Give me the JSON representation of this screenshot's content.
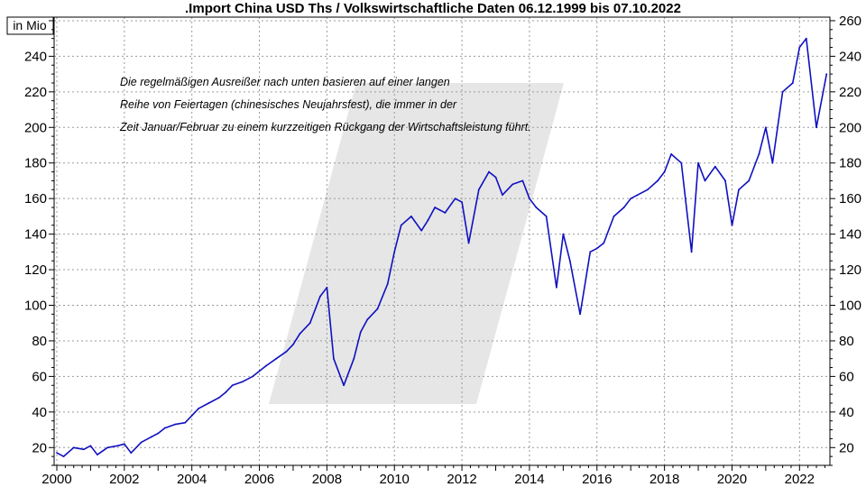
{
  "chart_data": {
    "type": "line",
    "title": ".Import China USD Ths / Volkswirtschaftliche Daten 06.12.1999 bis 07.10.2022",
    "unit_label": "in Mio",
    "annotation": [
      "Die regelmäßigen Ausreißer nach unten basieren auf einer langen",
      "Reihe von Feiertagen (chinesisches Neujahrsfest), die immer in der",
      "Zeit Januar/Februar zu einem kurzzeitigen Rückgang der Wirtschaftsleistung führt."
    ],
    "xlim": [
      1999.92,
      2022.9
    ],
    "ylim": [
      10,
      262
    ],
    "x_ticks": [
      2000,
      2002,
      2004,
      2006,
      2008,
      2010,
      2012,
      2014,
      2016,
      2018,
      2020,
      2022
    ],
    "y_ticks_left": [
      20,
      40,
      60,
      80,
      100,
      120,
      140,
      160,
      180,
      200,
      220,
      240
    ],
    "y_ticks_right": [
      20,
      40,
      60,
      80,
      100,
      120,
      140,
      160,
      180,
      200,
      220,
      240,
      260
    ],
    "grid": true,
    "line_color": "#1010c0",
    "series": [
      {
        "x": [
          2000.0,
          2000.2,
          2000.5,
          2000.8,
          2001.0,
          2001.2,
          2001.5,
          2001.8,
          2002.0,
          2002.2,
          2002.5,
          2002.8,
          2003.0,
          2003.2,
          2003.5,
          2003.8,
          2004.0,
          2004.2,
          2004.5,
          2004.8,
          2005.0,
          2005.2,
          2005.5,
          2005.8,
          2006.0,
          2006.2,
          2006.5,
          2006.8,
          2007.0,
          2007.2,
          2007.5,
          2007.8,
          2008.0,
          2008.2,
          2008.5,
          2008.8,
          2009.0,
          2009.2,
          2009.5,
          2009.8,
          2010.0,
          2010.2,
          2010.5,
          2010.8,
          2011.0,
          2011.2,
          2011.5,
          2011.8,
          2012.0,
          2012.2,
          2012.5,
          2012.8,
          2013.0,
          2013.2,
          2013.5,
          2013.8,
          2014.0,
          2014.2,
          2014.5,
          2014.8,
          2015.0,
          2015.2,
          2015.5,
          2015.8,
          2016.0,
          2016.2,
          2016.5,
          2016.8,
          2017.0,
          2017.2,
          2017.5,
          2017.8,
          2018.0,
          2018.2,
          2018.5,
          2018.8,
          2019.0,
          2019.2,
          2019.5,
          2019.8,
          2020.0,
          2020.2,
          2020.5,
          2020.8,
          2021.0,
          2021.2,
          2021.5,
          2021.8,
          2022.0,
          2022.2,
          2022.5,
          2022.8
        ],
        "y": [
          17,
          15,
          20,
          19,
          21,
          16,
          20,
          21,
          22,
          17,
          23,
          26,
          28,
          31,
          33,
          34,
          38,
          42,
          45,
          48,
          51,
          55,
          57,
          60,
          63,
          66,
          70,
          74,
          78,
          84,
          90,
          105,
          110,
          70,
          55,
          70,
          85,
          92,
          98,
          112,
          130,
          145,
          150,
          142,
          148,
          155,
          152,
          160,
          158,
          135,
          165,
          175,
          172,
          162,
          168,
          170,
          160,
          155,
          150,
          110,
          140,
          125,
          95,
          130,
          132,
          135,
          150,
          155,
          160,
          162,
          165,
          170,
          175,
          185,
          180,
          130,
          180,
          170,
          178,
          170,
          145,
          165,
          170,
          185,
          200,
          180,
          220,
          225,
          245,
          250,
          200,
          230
        ]
      }
    ]
  }
}
